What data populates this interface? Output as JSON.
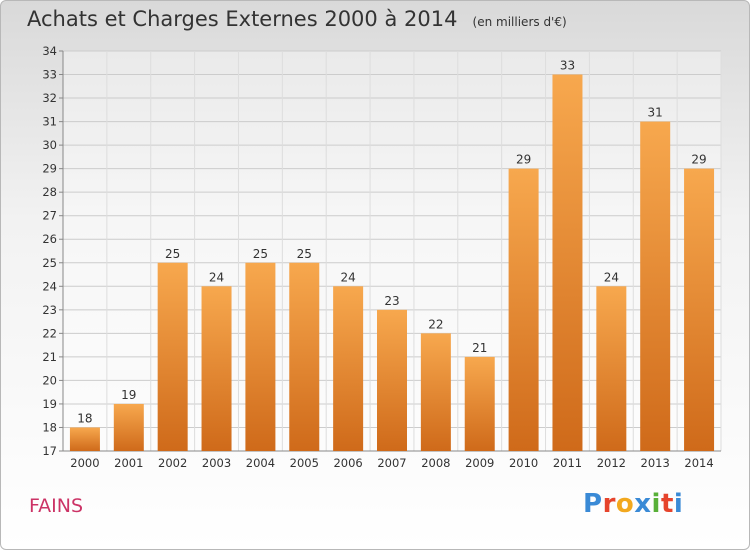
{
  "header": {
    "title": "Achats et Charges Externes 2000 à 2014",
    "subtitle": "(en milliers d'€)"
  },
  "footer": {
    "city": "FAINS",
    "logo_letters": [
      "P",
      "r",
      "o",
      "x",
      "i",
      "t",
      "i"
    ],
    "logo_colors": [
      "#3a8ad6",
      "#e6442c",
      "#f2a81e",
      "#3a8ad6",
      "#58b038",
      "#e6442c",
      "#3a8ad6"
    ]
  },
  "chart_data": {
    "type": "bar",
    "categories": [
      "2000",
      "2001",
      "2002",
      "2003",
      "2004",
      "2005",
      "2006",
      "2007",
      "2008",
      "2009",
      "2010",
      "2011",
      "2012",
      "2013",
      "2014"
    ],
    "values": [
      18,
      19,
      25,
      24,
      25,
      25,
      24,
      23,
      22,
      21,
      29,
      33,
      24,
      31,
      29
    ],
    "title": "Achats et Charges Externes 2000 à 2014",
    "ylim": [
      17,
      34
    ],
    "yticks": [
      17,
      18,
      19,
      20,
      21,
      22,
      23,
      24,
      25,
      26,
      27,
      28,
      29,
      30,
      31,
      32,
      33,
      34
    ],
    "grid": true,
    "bar_color": "#f0923a"
  }
}
